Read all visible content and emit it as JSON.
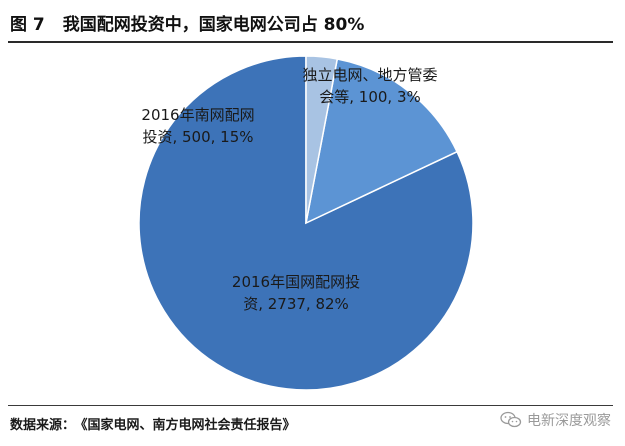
{
  "figure": {
    "number": "图 7",
    "title": "我国配网投资中，国家电网公司占 80%"
  },
  "chart_data": {
    "type": "pie",
    "slices": [
      {
        "label_lines": [
          "2016年国网配网投",
          "资, 2737, 82%"
        ],
        "value": 2737,
        "percent": 82,
        "color": "#3d73b8"
      },
      {
        "label_lines": [
          "2016年南网配网",
          "投资, 500, 15%"
        ],
        "value": 500,
        "percent": 15,
        "color": "#5c94d4"
      },
      {
        "label_lines": [
          "独立电网、地方管委",
          "会等, 100, 3%"
        ],
        "value": 100,
        "percent": 3,
        "color": "#a8c3e3"
      }
    ]
  },
  "source": {
    "label": "数据来源：",
    "text": "《国家电网、南方电网社会责任报告》"
  },
  "watermark": {
    "text": "电新深度观察",
    "icon": "wechat-icon"
  }
}
